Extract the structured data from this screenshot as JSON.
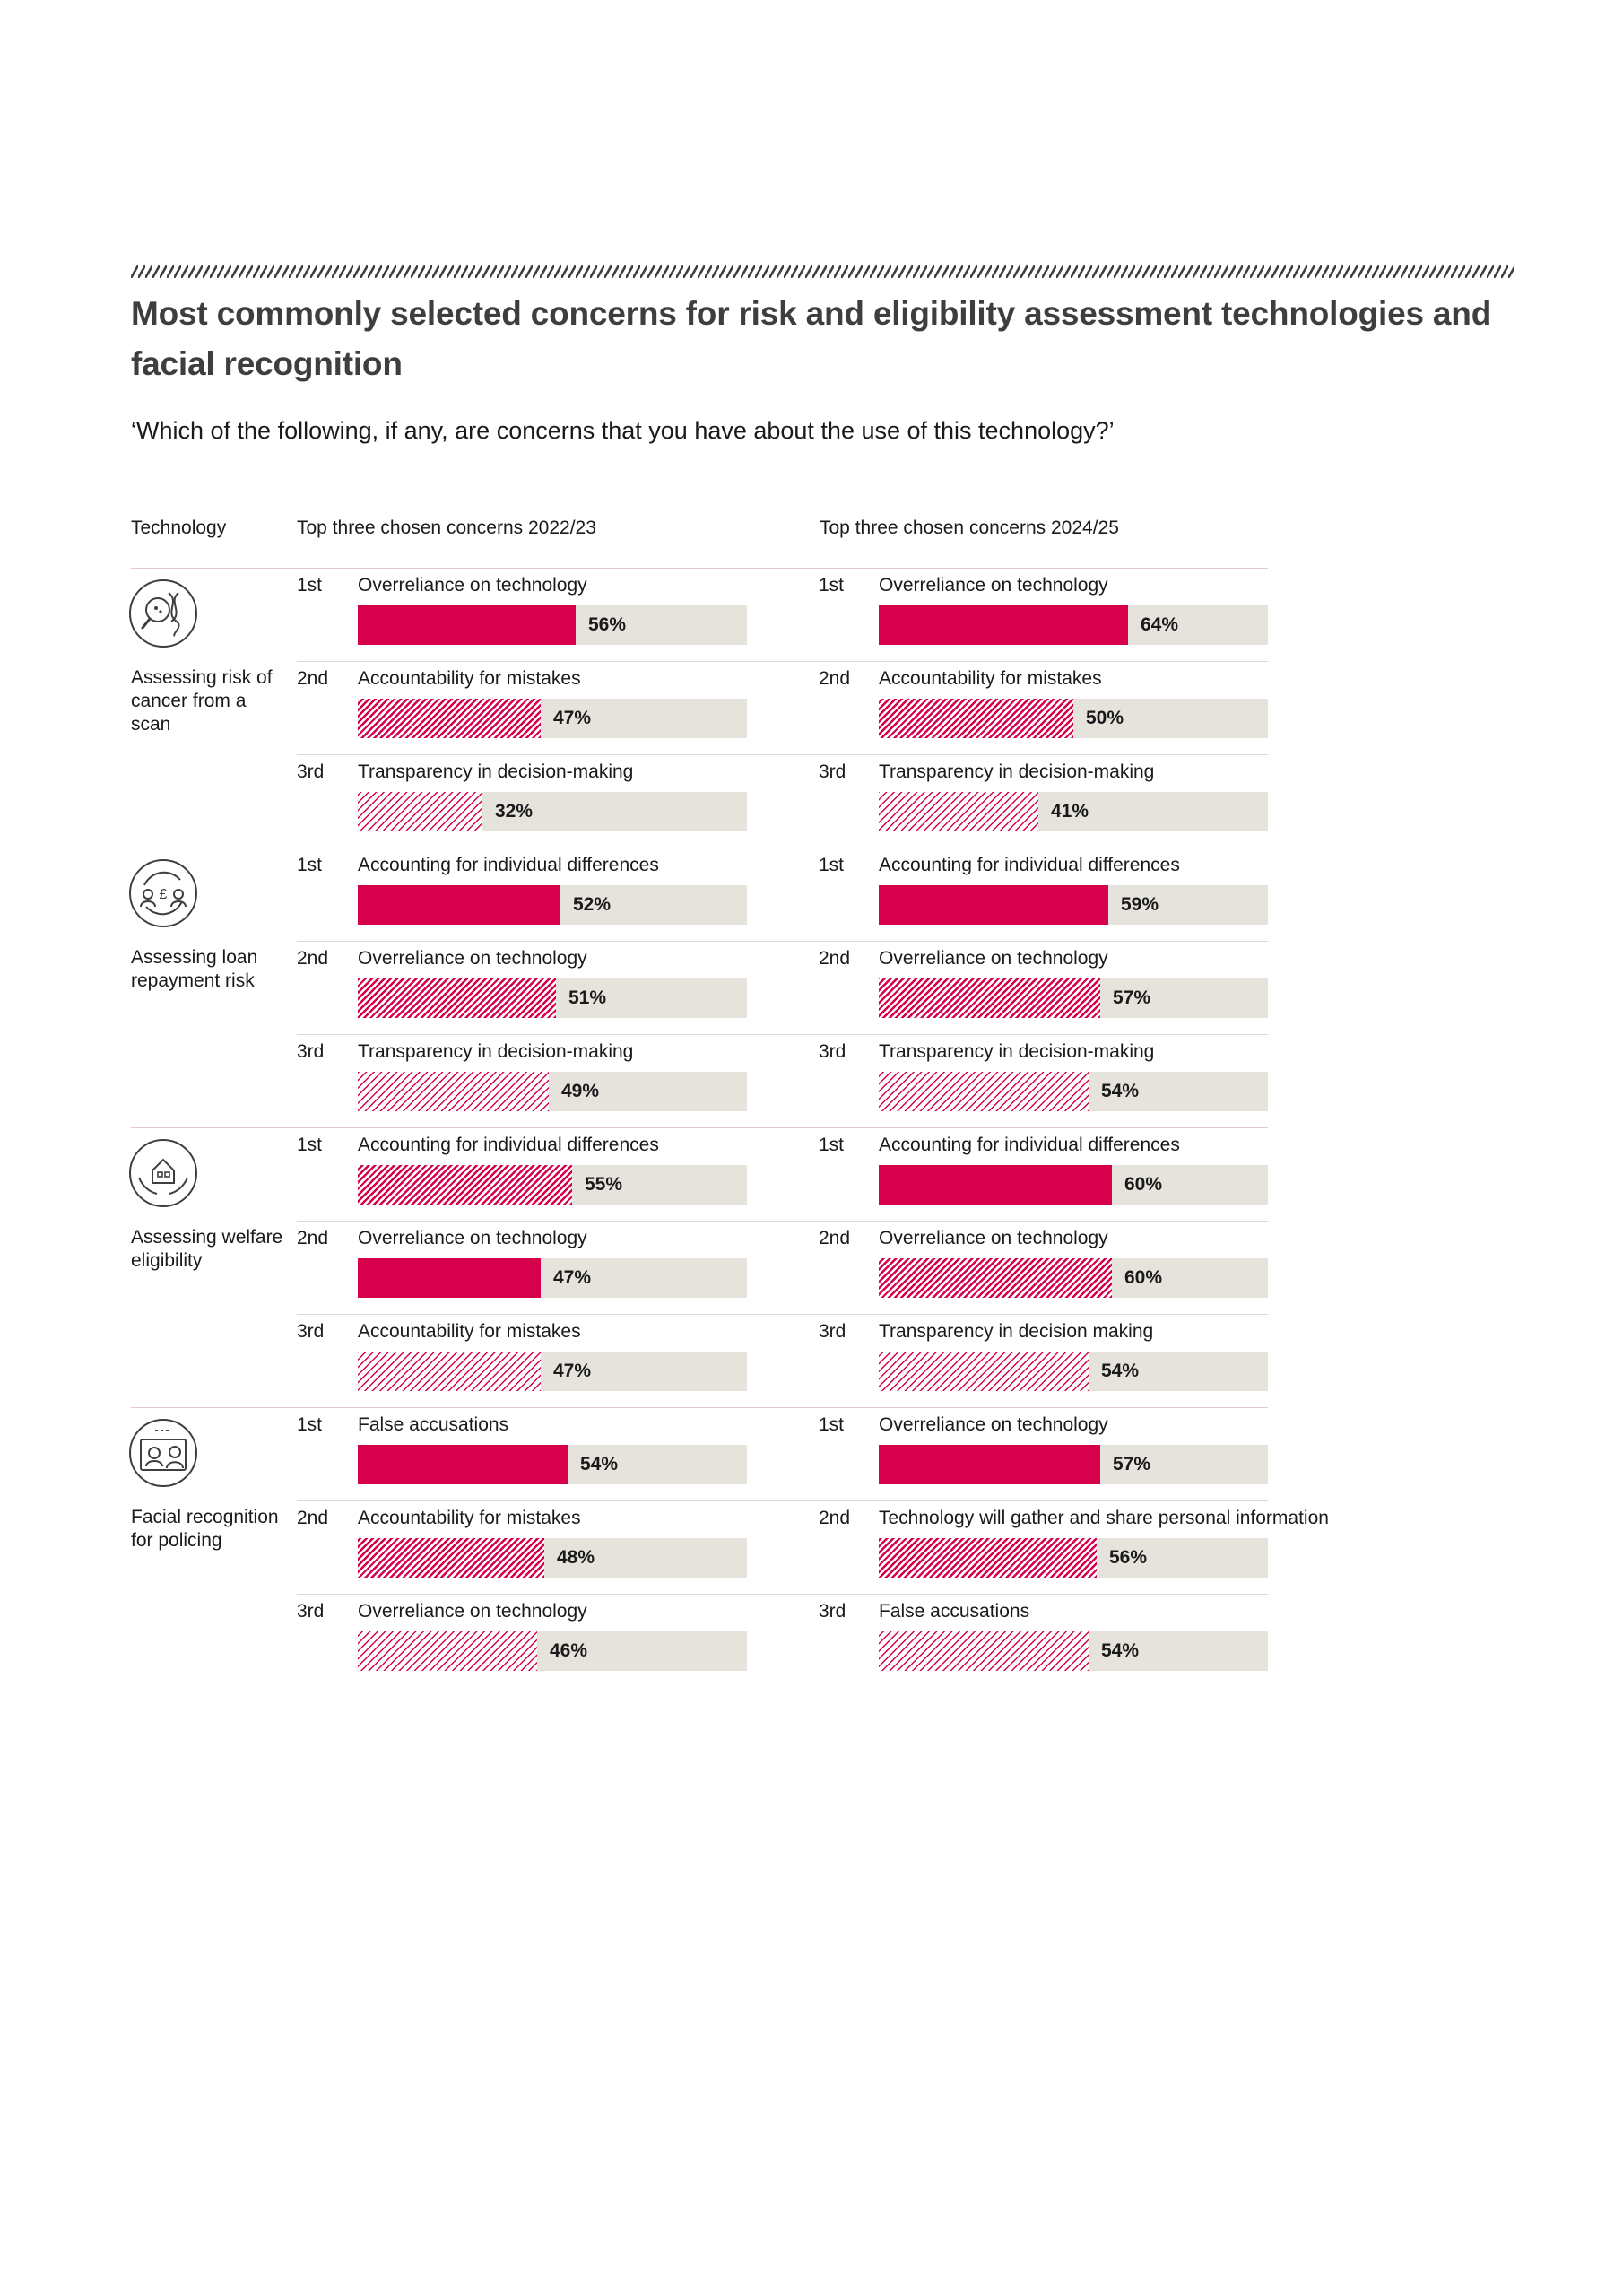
{
  "title": "Most commonly selected concerns for risk and eligibility assessment technologies and facial recognition",
  "subtitle": "‘Which of the following, if any, are concerns that you have about the use of this technology?’",
  "headers": {
    "technology": "Technology",
    "period_a": "Top three chosen concerns 2022/23",
    "period_b": "Top three chosen concerns 2024/25"
  },
  "colors": {
    "accent": "#d6004c",
    "track": "#e5e3dc",
    "title": "#3e3e3e"
  },
  "chart_data": {
    "type": "bar",
    "orientation": "horizontal",
    "value_unit": "%",
    "xlim": [
      0,
      100
    ],
    "rank_styles": {
      "1st": "solid",
      "2nd": "dense-hatch",
      "3rd": "light-hatch"
    },
    "technologies": [
      {
        "label": "Assessing risk of cancer from a scan",
        "icon": "dna-magnifier-icon",
        "period_a": [
          {
            "rank": "1st",
            "concern": "Overreliance on technology",
            "value": 56,
            "fill": "solid"
          },
          {
            "rank": "2nd",
            "concern": "Accountability for mistakes",
            "value": 47,
            "fill": "dense"
          },
          {
            "rank": "3rd",
            "concern": "Transparency in decision-making",
            "value": 32,
            "fill": "light"
          }
        ],
        "period_b": [
          {
            "rank": "1st",
            "concern": "Overreliance on technology",
            "value": 64,
            "fill": "solid"
          },
          {
            "rank": "2nd",
            "concern": "Accountability for mistakes",
            "value": 50,
            "fill": "dense"
          },
          {
            "rank": "3rd",
            "concern": "Transparency in decision-making",
            "value": 41,
            "fill": "light"
          }
        ]
      },
      {
        "label": "Assessing loan repayment risk",
        "icon": "loan-exchange-icon",
        "period_a": [
          {
            "rank": "1st",
            "concern": "Accounting for individual differences",
            "value": 52,
            "fill": "solid"
          },
          {
            "rank": "2nd",
            "concern": "Overreliance on technology",
            "value": 51,
            "fill": "dense"
          },
          {
            "rank": "3rd",
            "concern": "Transparency in decision-making",
            "value": 49,
            "fill": "light"
          }
        ],
        "period_b": [
          {
            "rank": "1st",
            "concern": "Accounting for individual differences",
            "value": 59,
            "fill": "solid"
          },
          {
            "rank": "2nd",
            "concern": "Overreliance on technology",
            "value": 57,
            "fill": "dense"
          },
          {
            "rank": "3rd",
            "concern": "Transparency in decision-making",
            "value": 54,
            "fill": "light"
          }
        ]
      },
      {
        "label": "Assessing welfare eligibility",
        "icon": "house-hands-icon",
        "period_a": [
          {
            "rank": "1st",
            "concern": "Accounting for individual differences",
            "value": 55,
            "fill": "dense"
          },
          {
            "rank": "2nd",
            "concern": "Overreliance on technology",
            "value": 47,
            "fill": "solid"
          },
          {
            "rank": "3rd",
            "concern": "Accountability for mistakes",
            "value": 47,
            "fill": "light"
          }
        ],
        "period_b": [
          {
            "rank": "1st",
            "concern": "Accounting for individual differences",
            "value": 60,
            "fill": "solid"
          },
          {
            "rank": "2nd",
            "concern": "Overreliance on technology",
            "value": 60,
            "fill": "dense"
          },
          {
            "rank": "3rd",
            "concern": "Transparency in decision making",
            "value": 54,
            "fill": "light"
          }
        ]
      },
      {
        "label": "Facial recognition for policing",
        "icon": "face-scan-icon",
        "period_a": [
          {
            "rank": "1st",
            "concern": "False accusations",
            "value": 54,
            "fill": "solid"
          },
          {
            "rank": "2nd",
            "concern": "Accountability for mistakes",
            "value": 48,
            "fill": "dense"
          },
          {
            "rank": "3rd",
            "concern": "Overreliance on technology",
            "value": 46,
            "fill": "light"
          }
        ],
        "period_b": [
          {
            "rank": "1st",
            "concern": "Overreliance on technology",
            "value": 57,
            "fill": "solid"
          },
          {
            "rank": "2nd",
            "concern": "Technology will gather and share personal information",
            "value": 56,
            "fill": "dense"
          },
          {
            "rank": "3rd",
            "concern": "False accusations",
            "value": 54,
            "fill": "light"
          }
        ]
      }
    ]
  }
}
